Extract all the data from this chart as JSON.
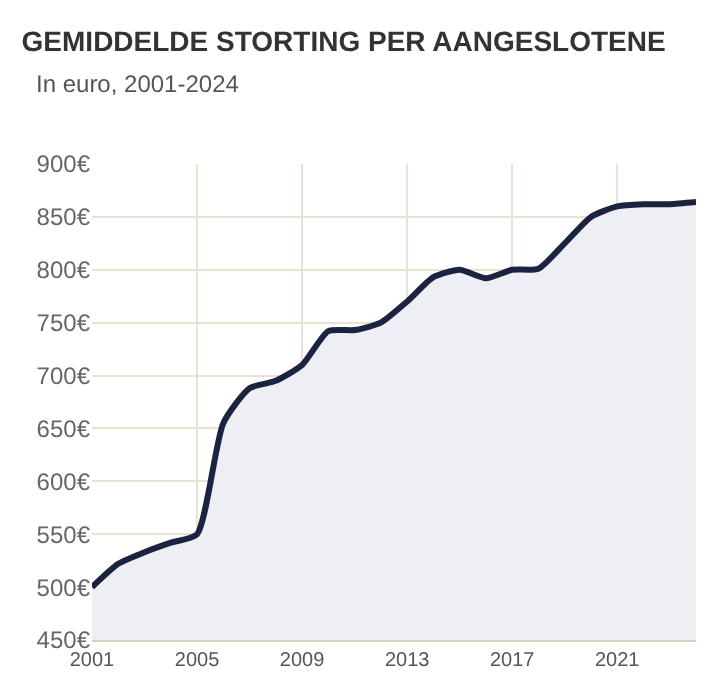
{
  "chart_data": {
    "type": "area",
    "title": "GEMIDDELDE STORTING PER AANGESLOTENE",
    "subtitle": "In euro, 2001-2024",
    "x": [
      2001,
      2002,
      2003,
      2004,
      2005,
      2006,
      2007,
      2008,
      2009,
      2010,
      2011,
      2012,
      2013,
      2014,
      2015,
      2016,
      2017,
      2018,
      2019,
      2020,
      2021,
      2022,
      2023,
      2024
    ],
    "series": [
      {
        "color": "#1a2340",
        "values": [
          500,
          522,
          533,
          542,
          550,
          655,
          688,
          695,
          710,
          742,
          743,
          750,
          770,
          793,
          800,
          792,
          800,
          801,
          825,
          850,
          860,
          862,
          862,
          864
        ]
      }
    ],
    "xlim": [
      2001,
      2024
    ],
    "xticks": [
      2001,
      2005,
      2009,
      2013,
      2017,
      2021
    ],
    "ylim": [
      450,
      900
    ],
    "yticks": [
      {
        "value": 450,
        "label": "450€"
      },
      {
        "value": 500,
        "label": "500€"
      },
      {
        "value": 550,
        "label": "550€"
      },
      {
        "value": 600,
        "label": "600€"
      },
      {
        "value": 650,
        "label": "650€"
      },
      {
        "value": 700,
        "label": "700€"
      },
      {
        "value": 750,
        "label": "750€"
      },
      {
        "value": 800,
        "label": "800€"
      },
      {
        "value": 850,
        "label": "850€"
      },
      {
        "value": 900,
        "label": "900€"
      }
    ],
    "grid": true,
    "marker": "none",
    "line_style": "solid"
  }
}
